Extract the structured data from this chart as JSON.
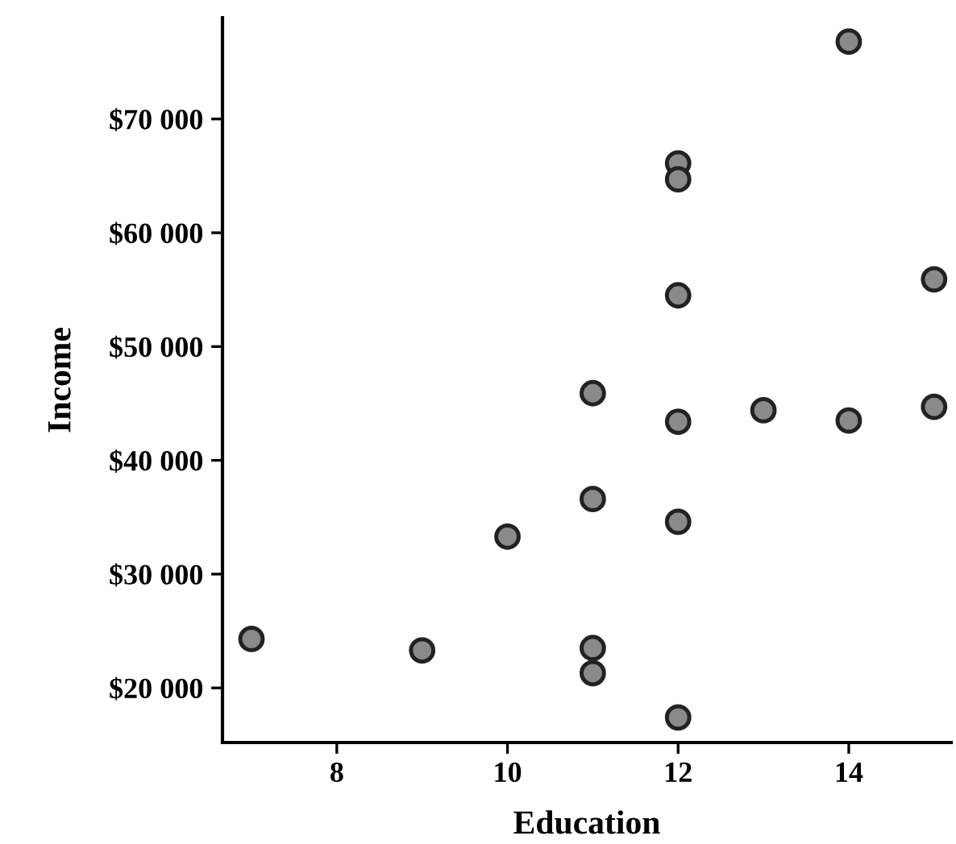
{
  "chart_data": {
    "type": "scatter",
    "xlabel": "Education",
    "ylabel": "Income",
    "x": [
      7,
      9,
      10,
      11,
      11,
      11,
      11,
      12,
      12,
      12,
      12,
      12,
      12,
      13,
      14,
      14,
      15,
      15
    ],
    "values": [
      24300,
      23300,
      33300,
      45900,
      36600,
      23500,
      21300,
      66100,
      64700,
      54500,
      43400,
      34600,
      17400,
      44400,
      76800,
      43500,
      55900,
      44700
    ],
    "color": "#8a8a8a",
    "marker": "circle",
    "xlim": [
      6.66,
      15.2
    ],
    "xticks": [
      8,
      10,
      12,
      14
    ],
    "ylim": [
      15200,
      78900
    ],
    "yticks": [
      {
        "value": 20000,
        "label": "$20 000"
      },
      {
        "value": 30000,
        "label": "$30 000"
      },
      {
        "value": 40000,
        "label": "$40 000"
      },
      {
        "value": 50000,
        "label": "$50 000"
      },
      {
        "value": 60000,
        "label": "$60 000"
      },
      {
        "value": 70000,
        "label": "$70 000"
      }
    ],
    "grid": false,
    "legend": false
  }
}
